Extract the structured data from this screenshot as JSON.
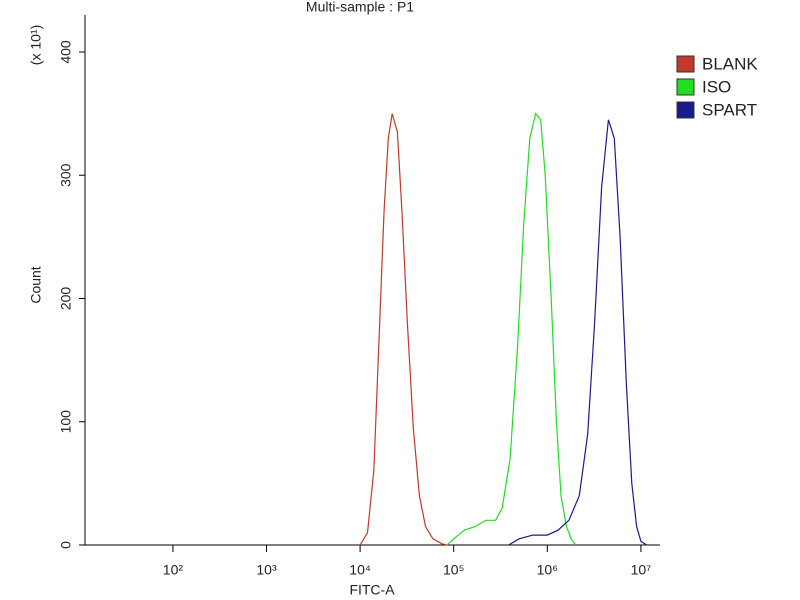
{
  "chart_data": {
    "type": "line",
    "title": "Multi-sample : P1",
    "x_label": "FITC-A",
    "y_label": "Count",
    "y_multiplier": "(x 10¹)",
    "xscale": "log",
    "xlim": [
      11.5,
      16000000
    ],
    "ylim": [
      0,
      430
    ],
    "xticks": [
      {
        "value": 100,
        "label": "10²"
      },
      {
        "value": 1000,
        "label": "10³"
      },
      {
        "value": 10000,
        "label": "10⁴"
      },
      {
        "value": 100000,
        "label": "10⁵"
      },
      {
        "value": 1000000,
        "label": "10⁶"
      },
      {
        "value": 10000000,
        "label": "10⁷"
      }
    ],
    "yticks": [
      0,
      100,
      200,
      300,
      400
    ],
    "series": [
      {
        "name": "BLANK",
        "color": "#c0392b",
        "x": [
          10000,
          12000,
          14000,
          16000,
          18000,
          20000,
          22000,
          25000,
          28000,
          32000,
          37000,
          43000,
          50000,
          60000,
          75000,
          85000
        ],
        "values": [
          0,
          10,
          60,
          170,
          270,
          330,
          350,
          335,
          270,
          180,
          95,
          40,
          15,
          5,
          1,
          0
        ]
      },
      {
        "name": "ISO",
        "color": "#22dd22",
        "x": [
          85000,
          100000,
          130000,
          170000,
          220000,
          280000,
          330000,
          400000,
          480000,
          560000,
          650000,
          750000,
          850000,
          950000,
          1100000,
          1250000,
          1400000,
          1600000,
          1800000,
          2000000
        ],
        "values": [
          0,
          5,
          12,
          15,
          20,
          20,
          30,
          70,
          160,
          260,
          330,
          350,
          345,
          300,
          200,
          100,
          40,
          15,
          5,
          0
        ]
      },
      {
        "name": "SPART",
        "color": "#1a1a8c",
        "x": [
          387000,
          500000,
          700000,
          1000000,
          1300000,
          1700000,
          2200000,
          2700000,
          3200000,
          3800000,
          4500000,
          5200000,
          6000000,
          7000000,
          8000000,
          9000000,
          10000000,
          11500000
        ],
        "values": [
          0,
          5,
          8,
          8,
          12,
          20,
          40,
          90,
          180,
          290,
          345,
          330,
          250,
          130,
          50,
          15,
          3,
          0
        ]
      }
    ],
    "legend": "right"
  }
}
